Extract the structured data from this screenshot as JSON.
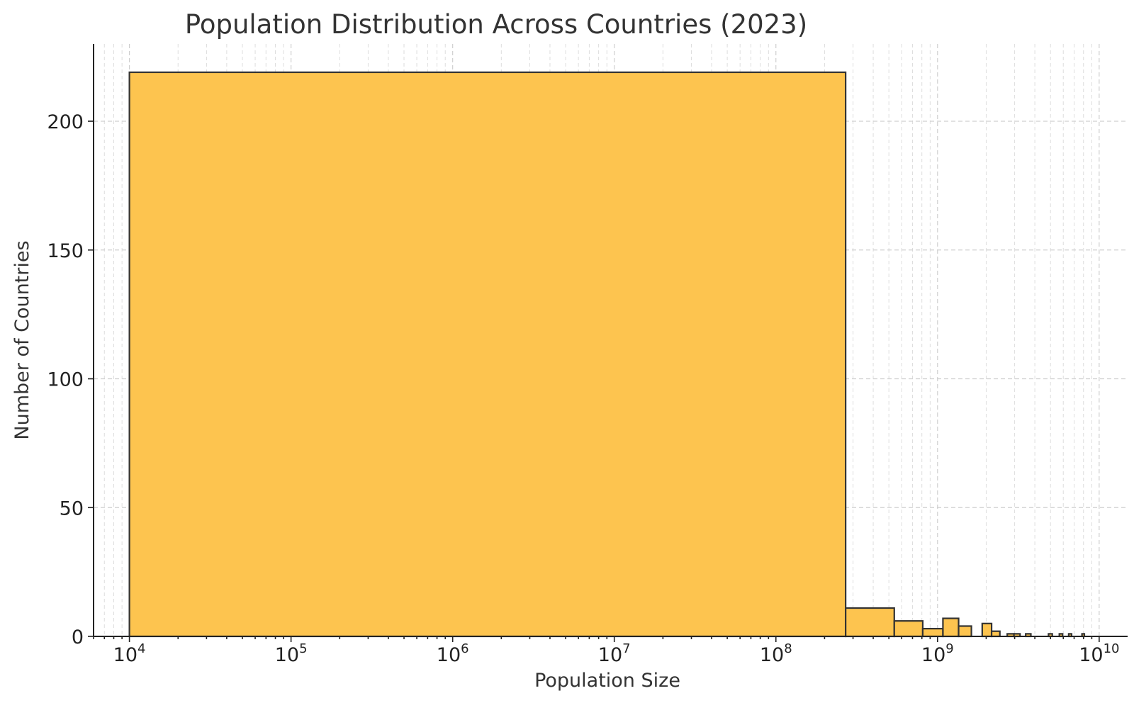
{
  "chart_data": {
    "type": "bar",
    "title": "Population Distribution Across Countries (2023)",
    "xlabel": "Population Size",
    "ylabel": "Number of Countries",
    "x_scale": "log",
    "xlim": [
      6000,
      15000000000
    ],
    "ylim": [
      0,
      230
    ],
    "x_ticks": [
      {
        "value": 10000,
        "base": "10",
        "exp": "4"
      },
      {
        "value": 100000,
        "base": "10",
        "exp": "5"
      },
      {
        "value": 1000000,
        "base": "10",
        "exp": "6"
      },
      {
        "value": 10000000,
        "base": "10",
        "exp": "7"
      },
      {
        "value": 100000000,
        "base": "10",
        "exp": "8"
      },
      {
        "value": 1000000000,
        "base": "10",
        "exp": "9"
      },
      {
        "value": 10000000000,
        "base": "10",
        "exp": "10"
      }
    ],
    "y_ticks": [
      {
        "value": 0,
        "label": "0"
      },
      {
        "value": 50,
        "label": "50"
      },
      {
        "value": 100,
        "label": "100"
      },
      {
        "value": 150,
        "label": "150"
      },
      {
        "value": 200,
        "label": "200"
      }
    ],
    "grid": true,
    "bar_color": "#FDC44F",
    "bar_edge_color": "#333333",
    "bins": [
      {
        "x0": 10000,
        "x1": 270000000,
        "count": 219
      },
      {
        "x0": 270000000,
        "x1": 540000000,
        "count": 11
      },
      {
        "x0": 540000000,
        "x1": 810000000,
        "count": 6
      },
      {
        "x0": 810000000,
        "x1": 1080000000,
        "count": 3
      },
      {
        "x0": 1080000000,
        "x1": 1350000000,
        "count": 7
      },
      {
        "x0": 1350000000,
        "x1": 1620000000,
        "count": 4
      },
      {
        "x0": 1890000000,
        "x1": 2160000000,
        "count": 5
      },
      {
        "x0": 2160000000,
        "x1": 2430000000,
        "count": 2
      },
      {
        "x0": 2700000000,
        "x1": 2970000000,
        "count": 1
      },
      {
        "x0": 2970000000,
        "x1": 3240000000,
        "count": 1
      },
      {
        "x0": 3510000000,
        "x1": 3780000000,
        "count": 1
      },
      {
        "x0": 4860000000,
        "x1": 5130000000,
        "count": 1
      },
      {
        "x0": 5670000000,
        "x1": 5940000000,
        "count": 1
      },
      {
        "x0": 6480000000,
        "x1": 6750000000,
        "count": 1
      },
      {
        "x0": 7830000000,
        "x1": 8100000000,
        "count": 1
      }
    ]
  }
}
